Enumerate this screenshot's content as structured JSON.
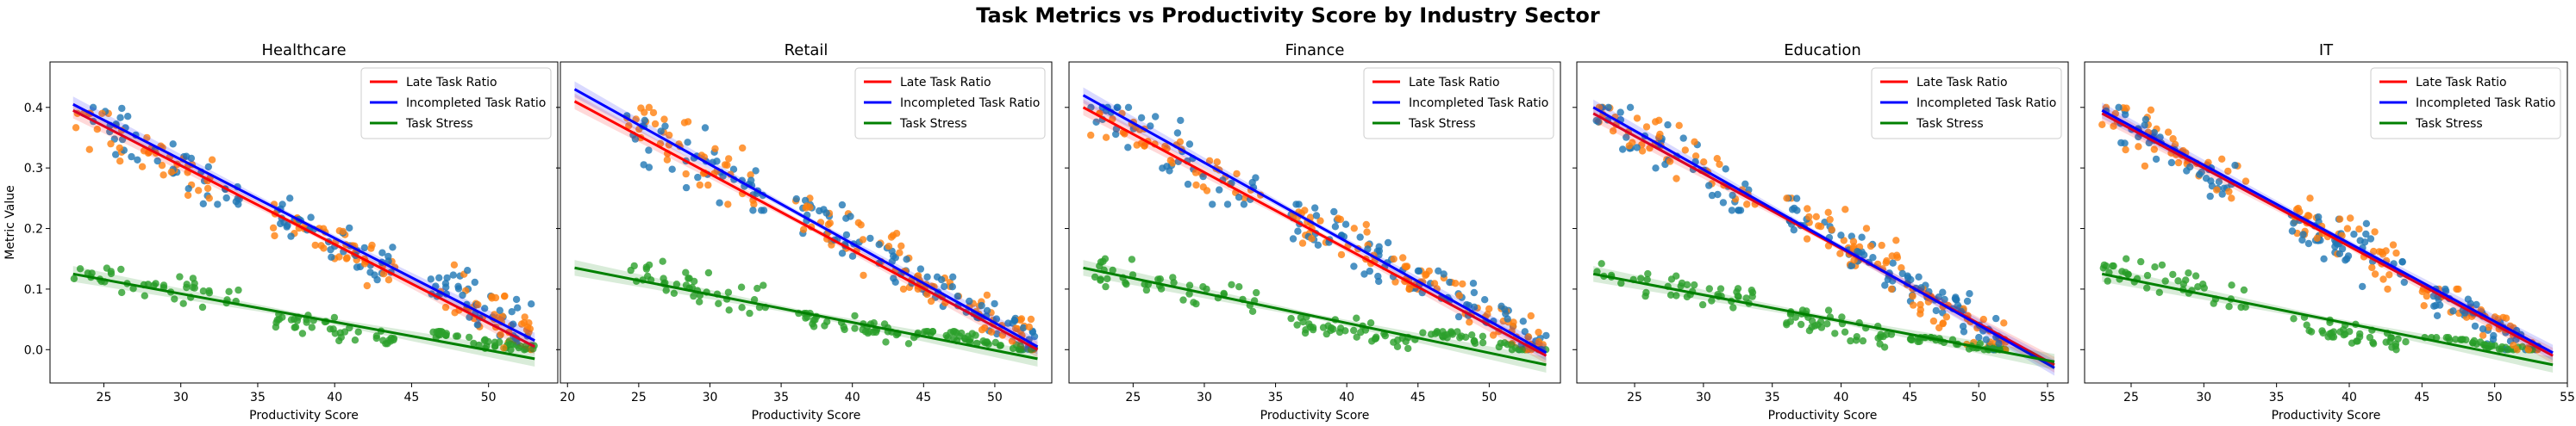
{
  "figure": {
    "title": "Task Metrics vs Productivity Score by Industry Sector"
  },
  "colors": {
    "late_points": "#1f77b4",
    "incompleted_points": "#ff7f0e",
    "stress_points": "#2ca02c",
    "late_line": "#ff0000",
    "incompleted_line": "#0000ff",
    "stress_line": "#008000"
  },
  "chart_data": [
    {
      "type": "scatter",
      "title": "Healthcare",
      "xlabel": "Productivity Score",
      "ylabel": "Metric Value",
      "xlim": [
        21.5,
        54.5
      ],
      "ylim": [
        -0.055,
        0.475
      ],
      "xticks": [
        25,
        30,
        35,
        40,
        45,
        50
      ],
      "yticks": [
        0.0,
        0.1,
        0.2,
        0.3,
        0.4
      ],
      "legend": "top-right",
      "grid": false,
      "series": [
        {
          "name": "Late Task Ratio",
          "regression": {
            "x": [
              23,
              53
            ],
            "y": [
              0.395,
              0.005
            ]
          }
        },
        {
          "name": "Incompleted Task Ratio",
          "regression": {
            "x": [
              23,
              53
            ],
            "y": [
              0.405,
              0.015
            ]
          }
        },
        {
          "name": "Task Stress",
          "regression": {
            "x": [
              23,
              53
            ],
            "y": [
              0.125,
              -0.015
            ]
          }
        }
      ],
      "clusters": [
        {
          "x": [
            23,
            34
          ],
          "late": [
            0.24,
            0.4
          ],
          "incompleted": [
            0.25,
            0.39
          ],
          "stress": [
            0.07,
            0.14
          ]
        },
        {
          "x": [
            36,
            44
          ],
          "late": [
            0.1,
            0.25
          ],
          "incompleted": [
            0.1,
            0.24
          ],
          "stress": [
            0.01,
            0.06
          ]
        },
        {
          "x": [
            46,
            53
          ],
          "late": [
            0.0,
            0.15
          ],
          "incompleted": [
            0.0,
            0.14
          ],
          "stress": [
            0.0,
            0.03
          ]
        }
      ]
    },
    {
      "type": "scatter",
      "title": "Retail",
      "xlabel": "Productivity Score",
      "ylabel": "",
      "xlim": [
        19.5,
        54.0
      ],
      "ylim": [
        -0.055,
        0.475
      ],
      "xticks": [
        20,
        25,
        30,
        35,
        40,
        45,
        50
      ],
      "yticks": [
        0.0,
        0.1,
        0.2,
        0.3,
        0.4
      ],
      "legend": "top-right",
      "grid": false,
      "series": [
        {
          "name": "Late Task Ratio",
          "regression": {
            "x": [
              20.5,
              53
            ],
            "y": [
              0.41,
              0.0
            ]
          }
        },
        {
          "name": "Incompleted Task Ratio",
          "regression": {
            "x": [
              20.5,
              53
            ],
            "y": [
              0.43,
              0.005
            ]
          }
        },
        {
          "name": "Task Stress",
          "regression": {
            "x": [
              20.5,
              53
            ],
            "y": [
              0.135,
              -0.015
            ]
          }
        }
      ],
      "clusters": [
        {
          "x": [
            24,
            34
          ],
          "late": [
            0.23,
            0.4
          ],
          "incompleted": [
            0.24,
            0.4
          ],
          "stress": [
            0.06,
            0.15
          ]
        },
        {
          "x": [
            36,
            45
          ],
          "late": [
            0.1,
            0.25
          ],
          "incompleted": [
            0.1,
            0.25
          ],
          "stress": [
            0.01,
            0.06
          ]
        },
        {
          "x": [
            45,
            53
          ],
          "late": [
            0.0,
            0.12
          ],
          "incompleted": [
            0.0,
            0.12
          ],
          "stress": [
            0.0,
            0.03
          ]
        }
      ]
    },
    {
      "type": "scatter",
      "title": "Finance",
      "xlabel": "Productivity Score",
      "ylabel": "",
      "xlim": [
        20.5,
        55.0
      ],
      "ylim": [
        -0.055,
        0.475
      ],
      "xticks": [
        25,
        30,
        35,
        40,
        45,
        50
      ],
      "yticks": [
        0.0,
        0.1,
        0.2,
        0.3,
        0.4
      ],
      "legend": "top-right",
      "grid": false,
      "series": [
        {
          "name": "Late Task Ratio",
          "regression": {
            "x": [
              21.5,
              54
            ],
            "y": [
              0.4,
              -0.01
            ]
          }
        },
        {
          "name": "Incompleted Task Ratio",
          "regression": {
            "x": [
              21.5,
              54
            ],
            "y": [
              0.42,
              -0.005
            ]
          }
        },
        {
          "name": "Task Stress",
          "regression": {
            "x": [
              21.5,
              54
            ],
            "y": [
              0.135,
              -0.025
            ]
          }
        }
      ],
      "clusters": [
        {
          "x": [
            22,
            34
          ],
          "late": [
            0.24,
            0.4
          ],
          "incompleted": [
            0.25,
            0.39
          ],
          "stress": [
            0.06,
            0.15
          ]
        },
        {
          "x": [
            36,
            45
          ],
          "late": [
            0.1,
            0.24
          ],
          "incompleted": [
            0.1,
            0.24
          ],
          "stress": [
            0.0,
            0.06
          ]
        },
        {
          "x": [
            45,
            54
          ],
          "late": [
            0.0,
            0.13
          ],
          "incompleted": [
            0.0,
            0.13
          ],
          "stress": [
            0.0,
            0.03
          ]
        }
      ]
    },
    {
      "type": "scatter",
      "title": "Education",
      "xlabel": "Productivity Score",
      "ylabel": "",
      "xlim": [
        20.8,
        56.5
      ],
      "ylim": [
        -0.055,
        0.475
      ],
      "xticks": [
        25,
        30,
        35,
        40,
        45,
        50,
        55
      ],
      "yticks": [
        0.0,
        0.1,
        0.2,
        0.3,
        0.4
      ],
      "legend": "top-right",
      "grid": false,
      "series": [
        {
          "name": "Late Task Ratio",
          "regression": {
            "x": [
              22,
              55.5
            ],
            "y": [
              0.39,
              -0.025
            ]
          }
        },
        {
          "name": "Incompleted Task Ratio",
          "regression": {
            "x": [
              22,
              55.5
            ],
            "y": [
              0.4,
              -0.03
            ]
          }
        },
        {
          "name": "Task Stress",
          "regression": {
            "x": [
              22,
              55.5
            ],
            "y": [
              0.125,
              -0.02
            ]
          }
        }
      ],
      "clusters": [
        {
          "x": [
            22,
            34
          ],
          "late": [
            0.23,
            0.4
          ],
          "incompleted": [
            0.24,
            0.4
          ],
          "stress": [
            0.06,
            0.15
          ]
        },
        {
          "x": [
            36,
            45
          ],
          "late": [
            0.1,
            0.25
          ],
          "incompleted": [
            0.1,
            0.25
          ],
          "stress": [
            0.0,
            0.07
          ]
        },
        {
          "x": [
            45,
            52
          ],
          "late": [
            0.0,
            0.12
          ],
          "incompleted": [
            0.0,
            0.1
          ],
          "stress": [
            0.0,
            0.02
          ]
        }
      ]
    },
    {
      "type": "scatter",
      "title": "IT",
      "xlabel": "Productivity Score",
      "ylabel": "",
      "xlim": [
        21.8,
        55.0
      ],
      "ylim": [
        -0.055,
        0.475
      ],
      "xticks": [
        25,
        30,
        35,
        40,
        45,
        50,
        55
      ],
      "yticks": [
        0.0,
        0.1,
        0.2,
        0.3,
        0.4
      ],
      "legend": "top-right",
      "grid": false,
      "series": [
        {
          "name": "Late Task Ratio",
          "regression": {
            "x": [
              23,
              54
            ],
            "y": [
              0.39,
              -0.01
            ]
          }
        },
        {
          "name": "Incompleted Task Ratio",
          "regression": {
            "x": [
              23,
              54
            ],
            "y": [
              0.395,
              -0.005
            ]
          }
        },
        {
          "name": "Task Stress",
          "regression": {
            "x": [
              23,
              54
            ],
            "y": [
              0.125,
              -0.025
            ]
          }
        }
      ],
      "clusters": [
        {
          "x": [
            23,
            33
          ],
          "late": [
            0.25,
            0.4
          ],
          "incompleted": [
            0.25,
            0.4
          ],
          "stress": [
            0.07,
            0.15
          ]
        },
        {
          "x": [
            36,
            44
          ],
          "late": [
            0.1,
            0.25
          ],
          "incompleted": [
            0.1,
            0.25
          ],
          "stress": [
            0.0,
            0.06
          ]
        },
        {
          "x": [
            45,
            53
          ],
          "late": [
            0.0,
            0.1
          ],
          "incompleted": [
            0.0,
            0.1
          ],
          "stress": [
            0.0,
            0.02
          ]
        }
      ]
    }
  ]
}
